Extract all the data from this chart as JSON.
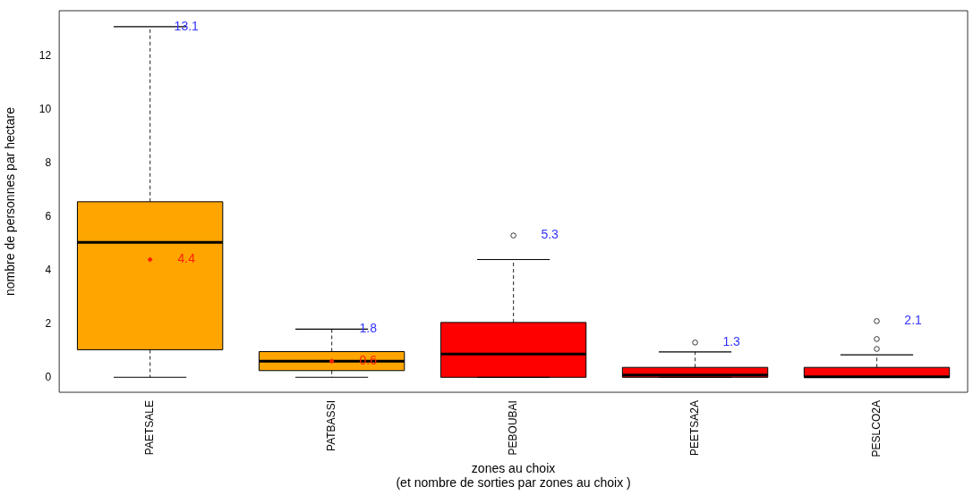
{
  "chart_data": {
    "type": "box",
    "xlabel": "zones au choix\n(et nombre de sorties par zones au choix )",
    "ylabel": "nombre de personnes par hectare",
    "categories": [
      "PAETSALE",
      "PATBASSI",
      "PEBOUBAI",
      "PEETSA2A",
      "PESLCO2A"
    ],
    "colors": [
      "#ffa500",
      "#ffa500",
      "#ff0000",
      "#ff0000",
      "#ff0000"
    ],
    "boxes": [
      {
        "low": 0,
        "q1": 1.03,
        "median": 5.04,
        "q3": 6.56,
        "high": 13.1,
        "mean": 4.4
      },
      {
        "low": 0,
        "q1": 0.25,
        "median": 0.6,
        "q3": 0.96,
        "high": 1.8,
        "mean": 0.6
      },
      {
        "low": 0,
        "q1": 0,
        "median": 0.87,
        "q3": 2.05,
        "high": 4.4
      },
      {
        "low": 0,
        "q1": 0,
        "median": 0.08,
        "q3": 0.37,
        "high": 0.95
      },
      {
        "low": 0,
        "q1": 0,
        "median": 0.02,
        "q3": 0.37,
        "high": 0.84
      }
    ],
    "series": [
      {
        "type": "scatter",
        "color": "#333333",
        "marker": "circle",
        "x": [
          "PEBOUBAI",
          "PEETSA2A",
          "PESLCO2A",
          "PESLCO2A",
          "PESLCO2A"
        ],
        "values": [
          5.3,
          1.3,
          1.06,
          1.43,
          2.1
        ]
      }
    ],
    "annotations": [
      {
        "text": "13.1",
        "x": "PAETSALE",
        "y": 13.1
      },
      "4.4",
      {
        "text": "1.8",
        "x": "PATBASSI",
        "y": 1.8
      },
      "0.6",
      {
        "text": "5.3",
        "x": "PEBOUBAI",
        "y": 5.3
      },
      {
        "text": "1.3",
        "x": "PEETSA2A",
        "y": 1.3
      },
      {
        "text": "2.1",
        "x": "PESLCO2A",
        "y": 2.1
      }
    ],
    "ylim": [
      -0.56,
      13.7
    ],
    "yticks": [
      0,
      2,
      4,
      6,
      8,
      10,
      12
    ],
    "grid": false,
    "legend": false
  }
}
